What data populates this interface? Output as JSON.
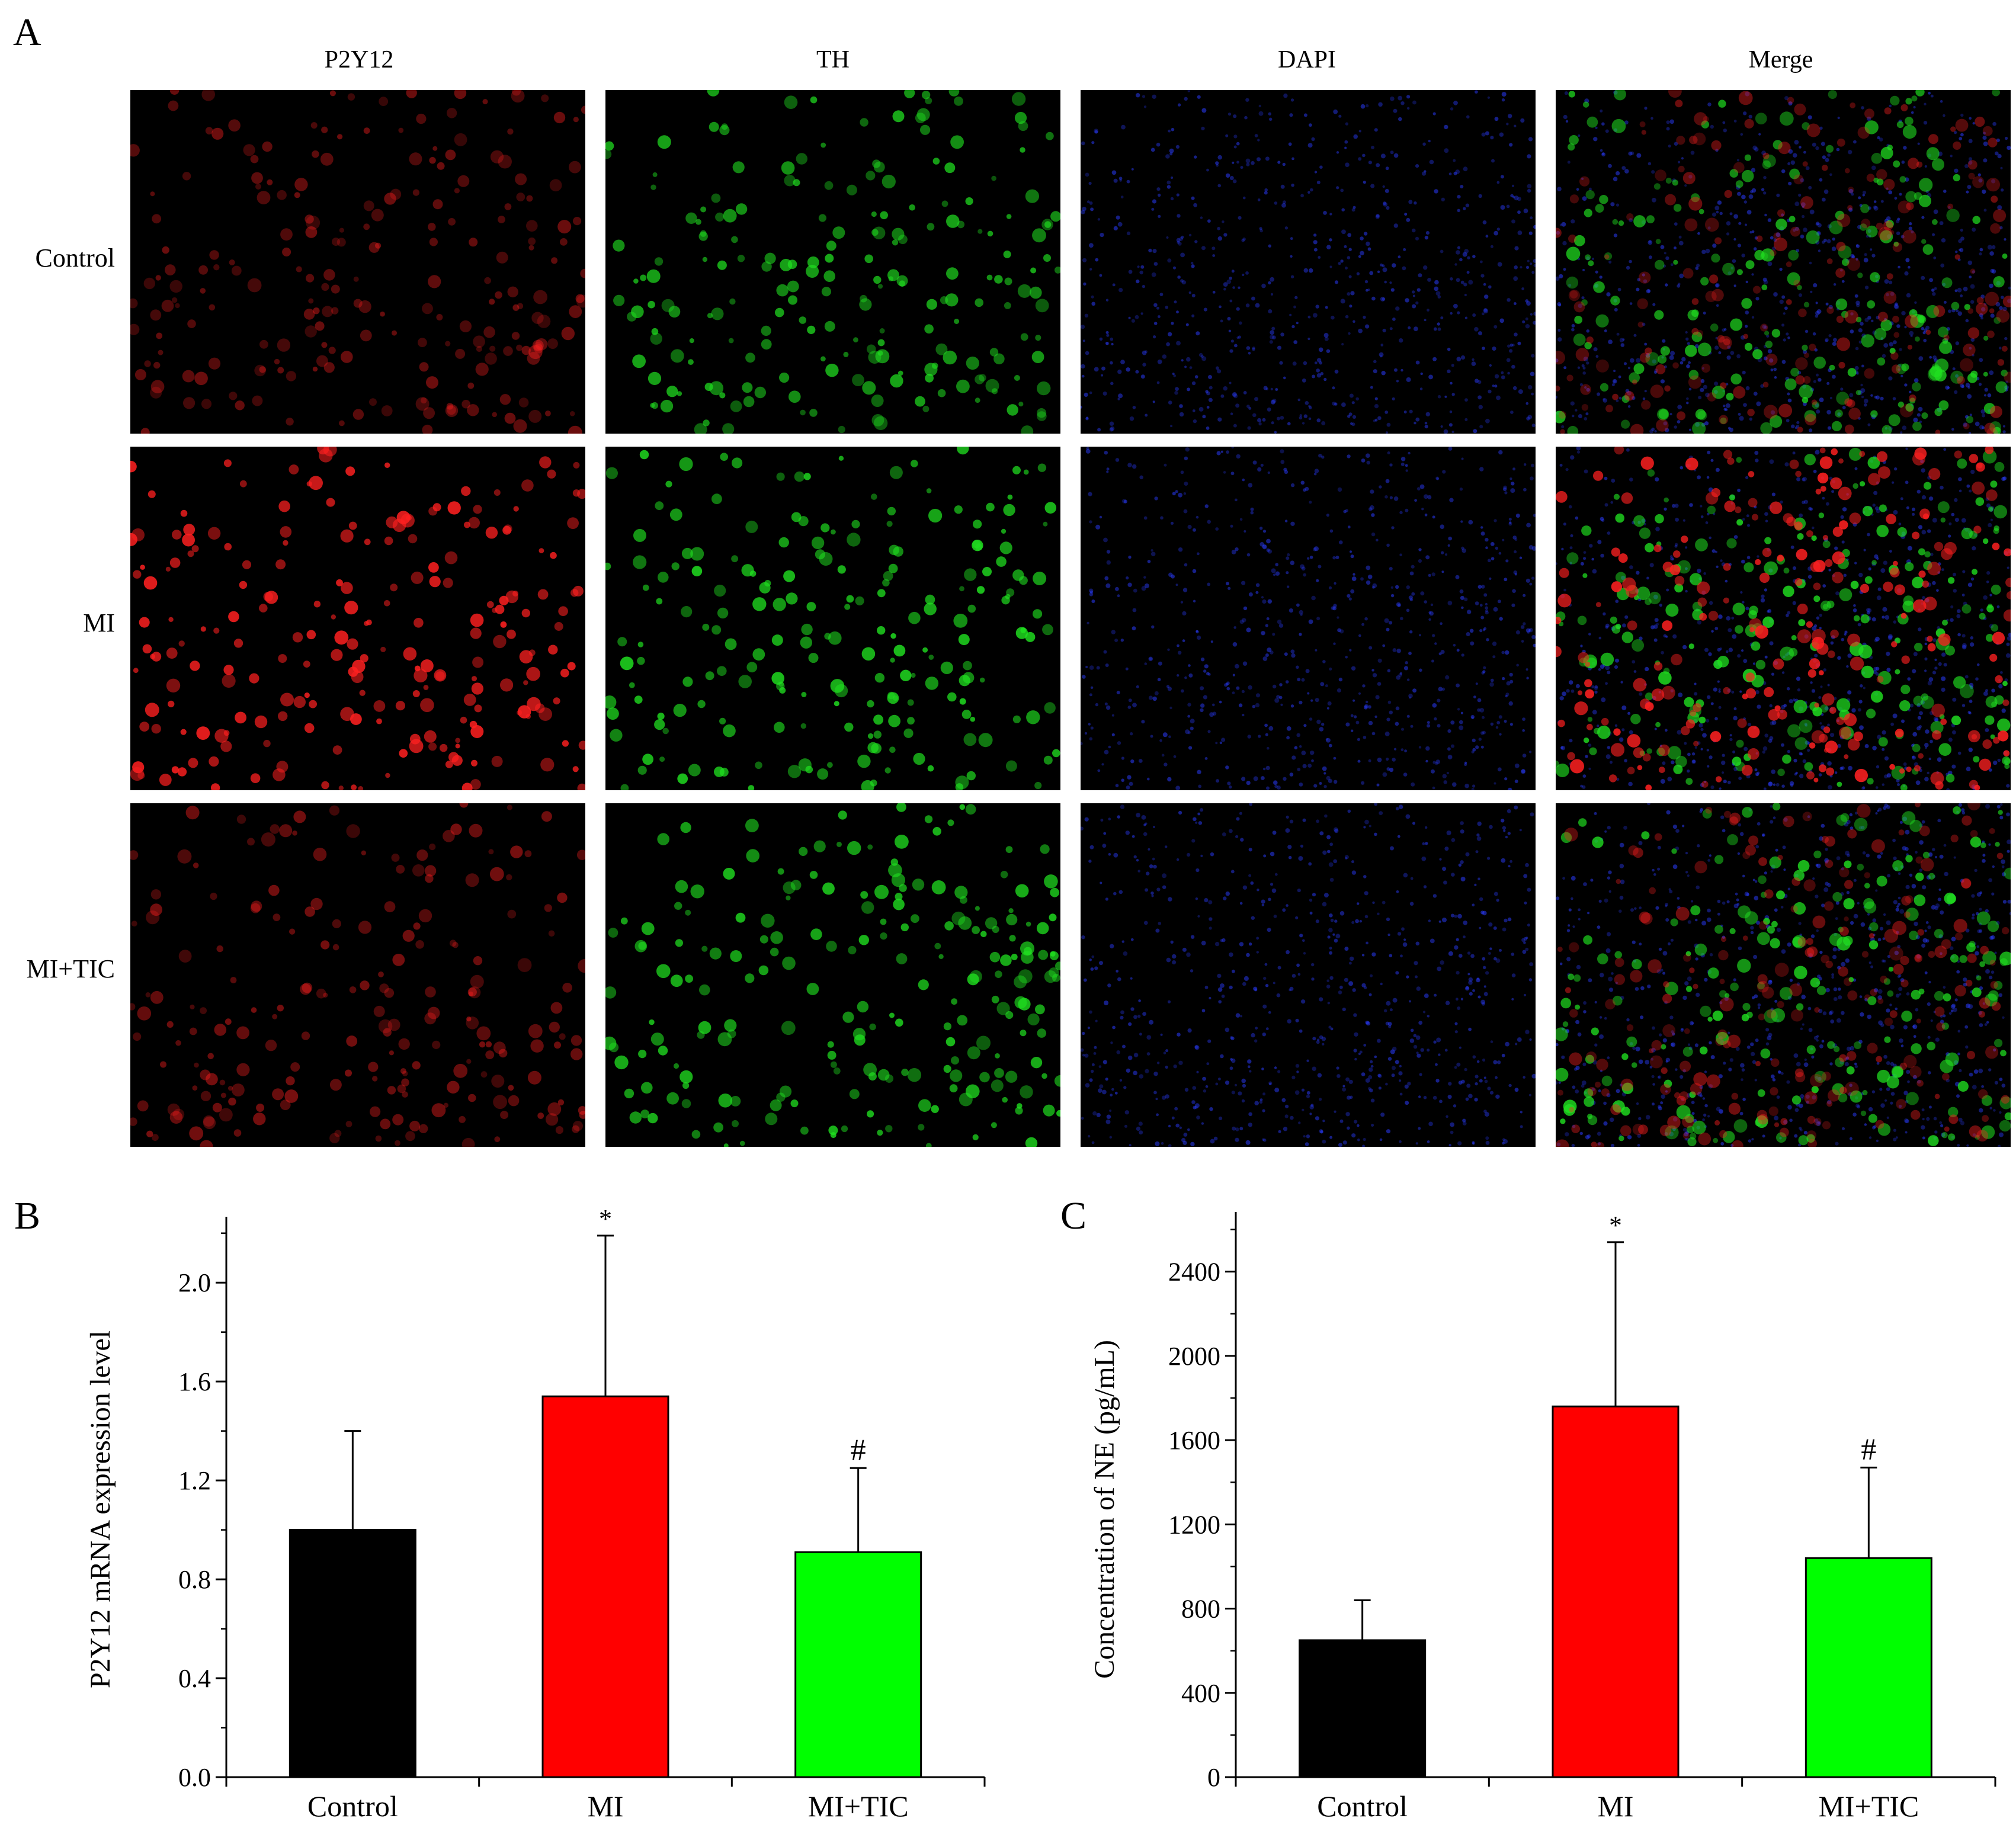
{
  "panels": {
    "a": {
      "letter": "A"
    },
    "b": {
      "letter": "B"
    },
    "c": {
      "letter": "C"
    }
  },
  "micrograph": {
    "columns": [
      "P2Y12",
      "TH",
      "DAPI",
      "Merge"
    ],
    "rows": [
      "Control",
      "MI",
      "MI+TIC"
    ],
    "stain_colors": {
      "P2Y12": "#ff2020",
      "TH": "#20e020",
      "DAPI": "#2a3cff",
      "Merge": "mixed"
    },
    "note_signal_level": {
      "Control": {
        "P2Y12": 0.25,
        "TH": 0.7,
        "DAPI": 0.6
      },
      "MI": {
        "P2Y12": 0.9,
        "TH": 0.85,
        "DAPI": 0.5
      },
      "MI+TIC": {
        "P2Y12": 0.3,
        "TH": 0.8,
        "DAPI": 0.5
      }
    }
  },
  "chart_data": [
    {
      "type": "bar",
      "categories": [
        "Control",
        "MI",
        "MI+TIC"
      ],
      "values": [
        1.0,
        1.54,
        0.91
      ],
      "error": [
        0.4,
        0.65,
        0.34
      ],
      "bar_colors": [
        "#000000",
        "#ff0000",
        "#00ff00"
      ],
      "annotations": [
        "",
        "*",
        "#"
      ],
      "ylabel": "P2Y12 mRNA expression level",
      "xlabel": "",
      "ylim": [
        0,
        2.3
      ],
      "yticks": [
        "0.0",
        "0.4",
        "0.8",
        "1.2",
        "1.6",
        "2.0"
      ],
      "ytick_values": [
        0,
        0.4,
        0.8,
        1.2,
        1.6,
        2.0
      ],
      "minor_step": 0.2,
      "grid": false
    },
    {
      "type": "bar",
      "categories": [
        "Control",
        "MI",
        "MI+TIC"
      ],
      "values": [
        650,
        1760,
        1040
      ],
      "error": [
        190,
        780,
        430
      ],
      "bar_colors": [
        "#000000",
        "#ff0000",
        "#00ff00"
      ],
      "annotations": [
        "",
        "*",
        "#"
      ],
      "ylabel": "Concentration of NE (pg/mL)",
      "xlabel": "",
      "ylim": [
        0,
        2700
      ],
      "yticks": [
        "0",
        "400",
        "800",
        "1200",
        "1600",
        "2000",
        "2400"
      ],
      "ytick_values": [
        0,
        400,
        800,
        1200,
        1600,
        2000,
        2400
      ],
      "minor_step": 200,
      "grid": false
    }
  ]
}
